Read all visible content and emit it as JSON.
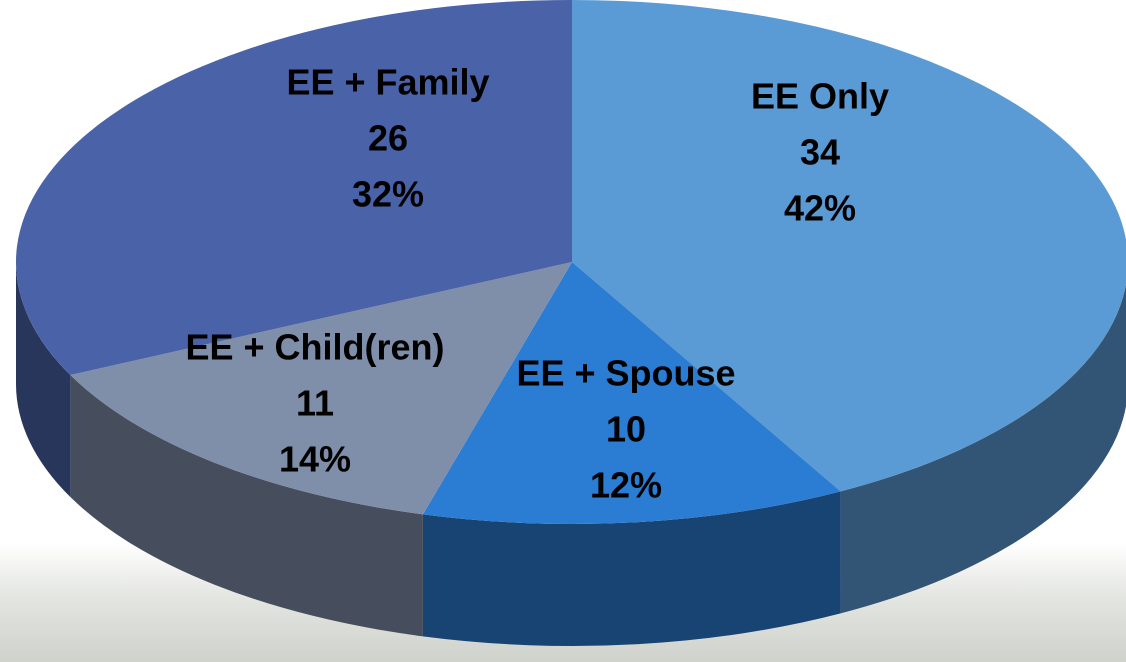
{
  "chart_data": {
    "type": "pie",
    "categories": [
      "EE Only",
      "EE + Spouse",
      "EE + Child(ren)",
      "EE + Family"
    ],
    "values": [
      34,
      10,
      11,
      26
    ],
    "percent_labels": [
      "42%",
      "12%",
      "14%",
      "32%"
    ],
    "colors": [
      "#5b9bd5",
      "#2b7cd3",
      "#7f8ea9",
      "#4962a8"
    ]
  }
}
